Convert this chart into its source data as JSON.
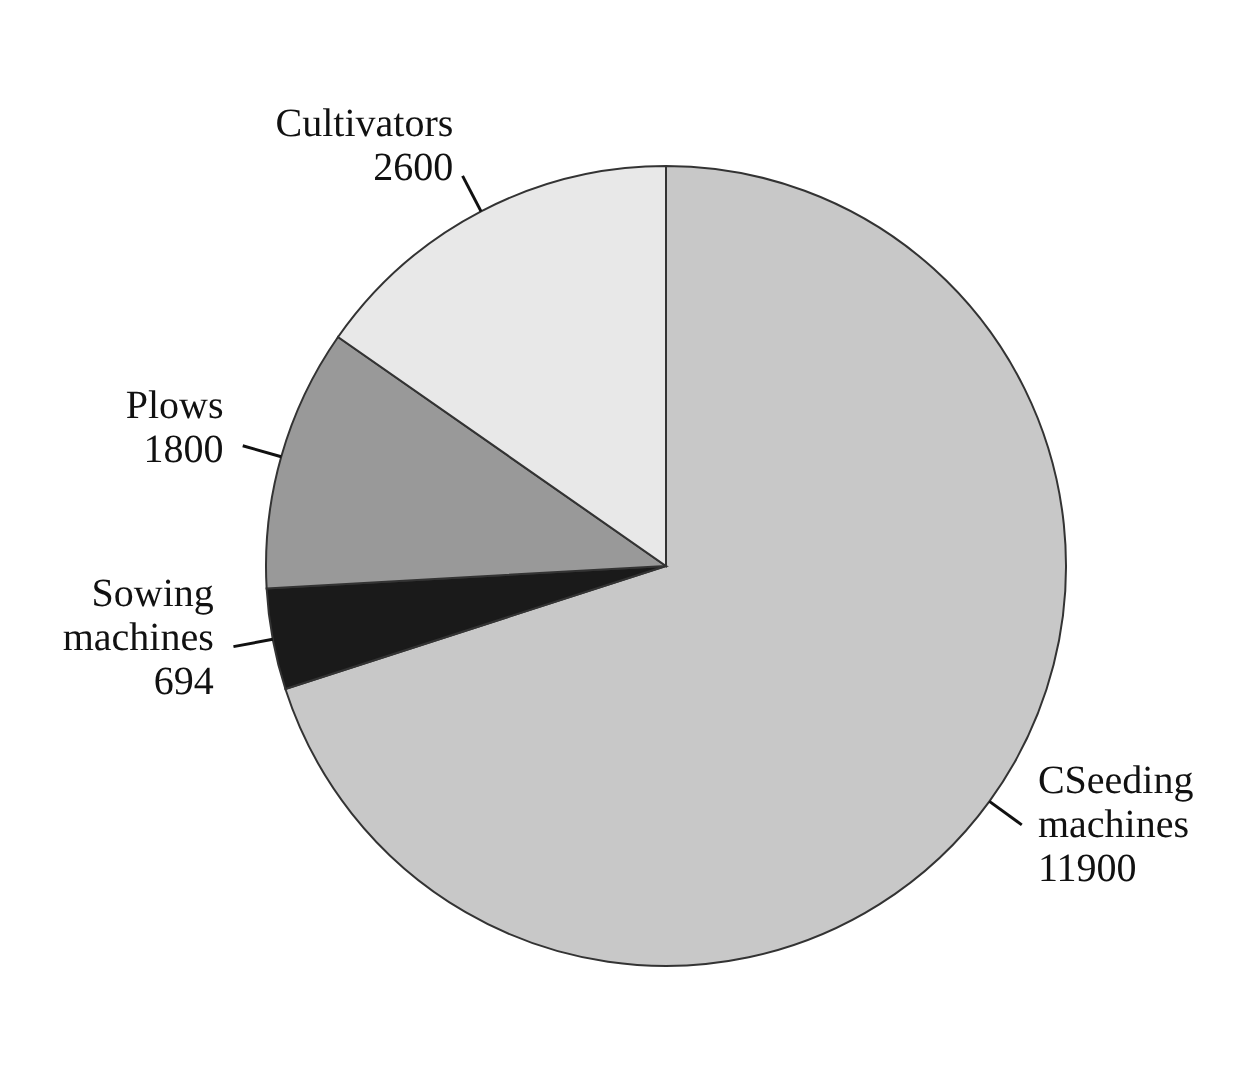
{
  "chart_data": {
    "type": "pie",
    "categories": [
      "CSeeding machines",
      "Sowing machines",
      "Plows",
      "Cultivators"
    ],
    "values": [
      11900,
      694,
      1800,
      2600
    ],
    "colors": [
      "#c8c8c8",
      "#1a1a1a",
      "#999999",
      "#e8e8e8"
    ],
    "data_labels": true,
    "legend": false
  }
}
